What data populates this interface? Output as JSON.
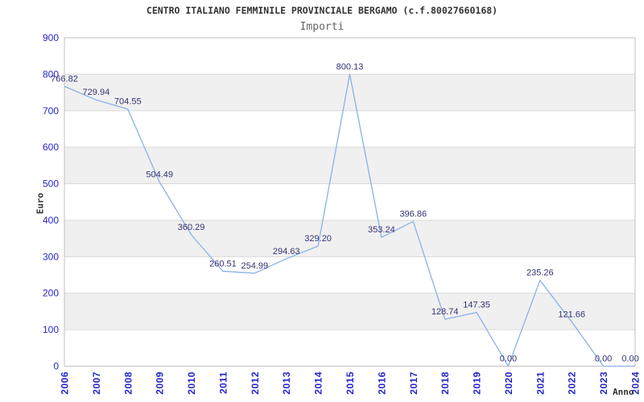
{
  "chart_data": {
    "type": "line",
    "title": "CENTRO ITALIANO FEMMINILE PROVINCIALE BERGAMO (c.f.80027660168)",
    "subtitle": "Importi",
    "xlabel": "Anno",
    "ylabel": "Euro",
    "categories": [
      "2006",
      "2007",
      "2008",
      "2009",
      "2010",
      "2011",
      "2012",
      "2013",
      "2014",
      "2015",
      "2016",
      "2017",
      "2018",
      "2019",
      "2020",
      "2021",
      "2022",
      "2023",
      "2024"
    ],
    "series": [
      {
        "name": "Importi",
        "values": [
          766.82,
          729.94,
          704.55,
          504.49,
          360.29,
          260.51,
          254.99,
          294.63,
          329.2,
          800.13,
          353.24,
          396.86,
          128.74,
          147.35,
          0.0,
          235.26,
          121.66,
          0.0,
          0.0
        ]
      }
    ],
    "point_labels": [
      "766.82",
      "729.94",
      "704.55",
      "504.49",
      "360.29",
      "260.51",
      "254.99",
      "294.63",
      "329.20",
      "800.13",
      "353.24",
      "396.86",
      "128.74",
      "147.35",
      "0.00",
      "235.26",
      "121.66",
      "0.00",
      "0.00"
    ],
    "ylim": [
      0,
      900
    ],
    "yticks": [
      0,
      100,
      200,
      300,
      400,
      500,
      600,
      700,
      800,
      900
    ],
    "grid": "horizontal-100s-with-alternating-bands",
    "legend": "none",
    "markers": "none",
    "x_tick_rotation": -90,
    "colors": {
      "line": "#8ab1e8",
      "tick_label": "#2626cc",
      "point_label": "#333375",
      "band": "#f0f0f0",
      "gridline": "#d9d9d9",
      "plot_border": "#c0c0c0",
      "title": "#333333",
      "subtitle": "#666666",
      "axis_title": "#333333",
      "background": "#ffffff"
    }
  }
}
